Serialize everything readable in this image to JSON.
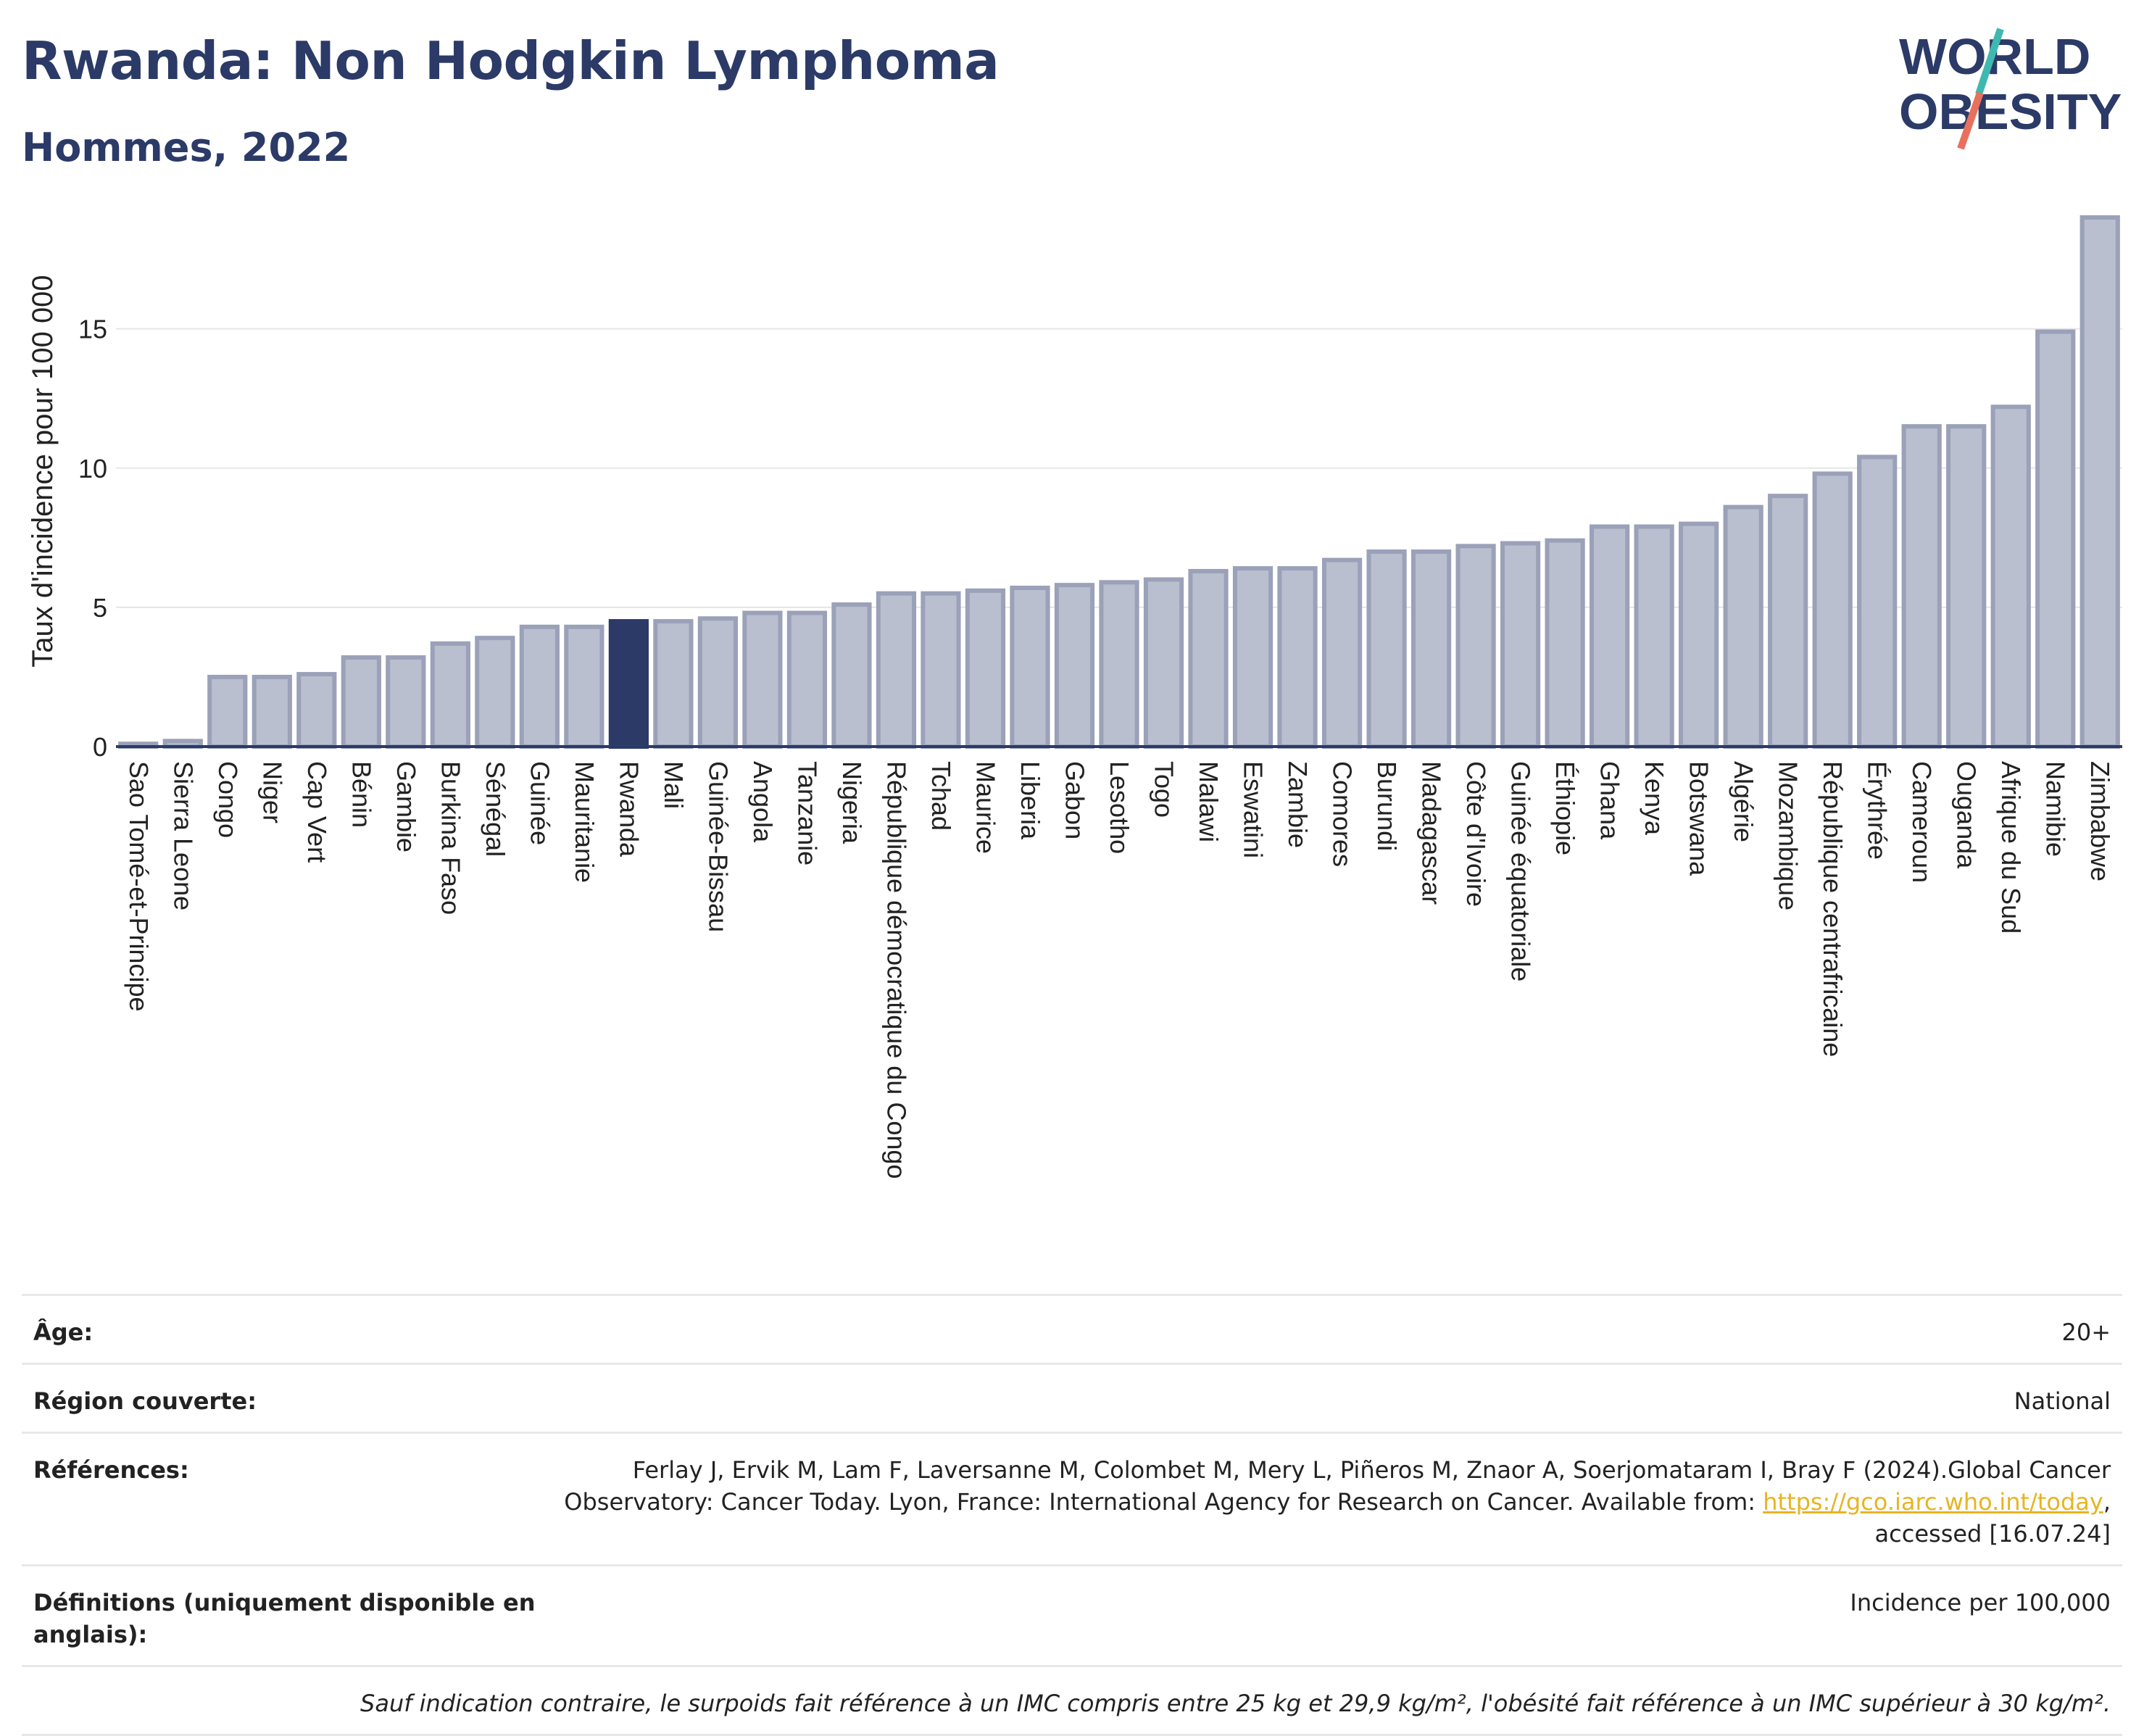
{
  "header": {
    "title": "Rwanda: Non Hodgkin Lymphoma",
    "subtitle": "Hommes, 2022"
  },
  "logo": {
    "line1": "WORLD",
    "line2": "OBESITY"
  },
  "colors": {
    "highlight": "#2b3a67",
    "bar": "#b9bfcf",
    "bar_border": "#9aa1b8",
    "title": "#2b3a67",
    "link": "#e8b422"
  },
  "chart_data": {
    "type": "bar",
    "ylabel": "Taux d'incidence pour 100 000",
    "xlabel": "",
    "ylim": [
      0,
      19
    ],
    "yticks": [
      0,
      5,
      10,
      15
    ],
    "highlight": "Rwanda",
    "categories": [
      "Sao Tomé-et-Principe",
      "Sierra Leone",
      "Congo",
      "Niger",
      "Cap Vert",
      "Bénin",
      "Gambie",
      "Burkina Faso",
      "Sénégal",
      "Guinée",
      "Mauritanie",
      "Rwanda",
      "Mali",
      "Guinée-Bissau",
      "Angola",
      "Tanzanie",
      "Nigeria",
      "République démocratique du Congo",
      "Tchad",
      "Maurice",
      "Liberia",
      "Gabon",
      "Lesotho",
      "Togo",
      "Malawi",
      "Eswatini",
      "Zambie",
      "Comores",
      "Burundi",
      "Madagascar",
      "Côte d'Ivoire",
      "Guinée équatoriale",
      "Éthiopie",
      "Ghana",
      "Kenya",
      "Botswana",
      "Algérie",
      "Mozambique",
      "République centrafricaine",
      "Érythrée",
      "Cameroun",
      "Ouganda",
      "Afrique du Sud",
      "Namibie",
      "Zimbabwe"
    ],
    "values": [
      0.1,
      0.2,
      2.5,
      2.5,
      2.6,
      3.2,
      3.2,
      3.7,
      3.9,
      4.3,
      4.3,
      4.5,
      4.5,
      4.6,
      4.8,
      4.8,
      5.1,
      5.5,
      5.5,
      5.6,
      5.7,
      5.8,
      5.9,
      6.0,
      6.3,
      6.4,
      6.4,
      6.7,
      7.0,
      7.0,
      7.2,
      7.3,
      7.4,
      7.9,
      7.9,
      8.0,
      8.6,
      9.0,
      9.8,
      10.4,
      11.5,
      11.5,
      12.2,
      14.9,
      19.0
    ]
  },
  "info": {
    "age_label": "Âge:",
    "age_value": "20+",
    "region_label": "Région couverte:",
    "region_value": "National",
    "ref_label": "Références:",
    "ref_text_1": "Ferlay J, Ervik M, Lam F, Laversanne M, Colombet M, Mery L, Piñeros M, Znaor A, Soerjomataram I, Bray F (2024).Global Cancer Observatory: Cancer Today. Lyon, France: International Agency for Research on Cancer. Available from: ",
    "ref_link": "https://gco.iarc.who.int/today",
    "ref_text_2": ", accessed [16.07.24]",
    "def_label": "Définitions (uniquement disponible en anglais):",
    "def_value": "Incidence per 100,000",
    "note": "Sauf indication contraire, le surpoids fait référence à un IMC compris entre 25 kg et 29,9 kg/m², l'obésité fait référence à un IMC supérieur à 30 kg/m²."
  }
}
